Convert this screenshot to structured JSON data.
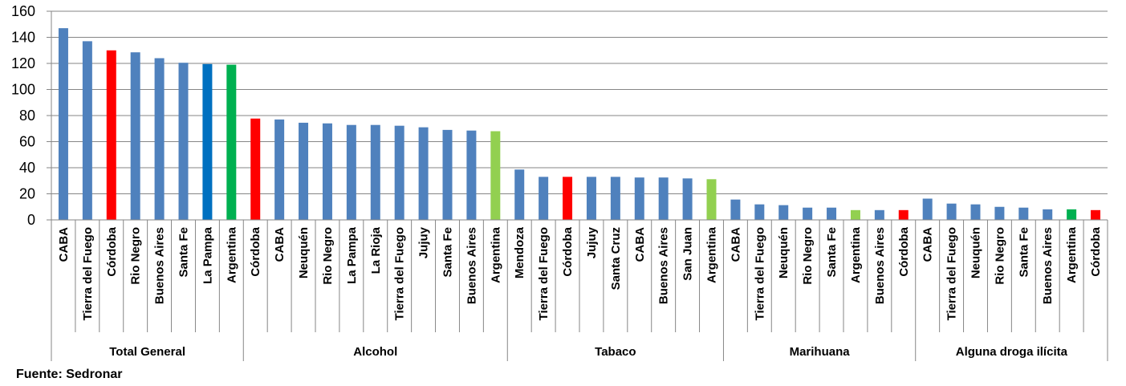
{
  "chart_data": {
    "type": "bar",
    "title": "",
    "xlabel": "",
    "ylabel": "",
    "ylim": [
      0,
      160
    ],
    "yticks": [
      0,
      20,
      40,
      60,
      80,
      100,
      120,
      140,
      160
    ],
    "grid": true,
    "legend": null,
    "groups": [
      {
        "name": "Total General",
        "categories": [
          "CABA",
          "Tierra del Fuego",
          "Córdoba",
          "Rio Negro",
          "Buenos Aires",
          "Santa Fe",
          "La Pampa",
          "Argentina"
        ],
        "values": [
          147,
          137,
          130,
          128.5,
          124,
          120.5,
          119.5,
          119
        ],
        "colors": [
          "#4F81BD",
          "#4F81BD",
          "#FF0000",
          "#4F81BD",
          "#4F81BD",
          "#4F81BD",
          "#0070C0",
          "#00B050"
        ]
      },
      {
        "name": "Alcohol",
        "categories": [
          "Córdoba",
          "CABA",
          "Neuquén",
          "Rio Negro",
          "La Pampa",
          "La Rioja",
          "Tierra del Fuego",
          "Jujuy",
          "Santa Fe",
          "Buenos Aires",
          "Argentina"
        ],
        "values": [
          77.7,
          77,
          74.5,
          74,
          72.8,
          72.8,
          72.2,
          71,
          69,
          68.5,
          68
        ],
        "colors": [
          "#FF0000",
          "#4F81BD",
          "#4F81BD",
          "#4F81BD",
          "#4F81BD",
          "#4F81BD",
          "#4F81BD",
          "#4F81BD",
          "#4F81BD",
          "#4F81BD",
          "#92D050"
        ]
      },
      {
        "name": "Tabaco",
        "categories": [
          "Mendoza",
          "Tierra del Fuego",
          "Córdoba",
          "Jujuy",
          "Santa Cruz",
          "CABA",
          "Buenos Aires",
          "San Juan",
          "Argentina"
        ],
        "values": [
          38.6,
          33,
          33,
          33,
          33,
          32.5,
          32.5,
          31.8,
          31.2
        ],
        "colors": [
          "#4F81BD",
          "#4F81BD",
          "#FF0000",
          "#4F81BD",
          "#4F81BD",
          "#4F81BD",
          "#4F81BD",
          "#4F81BD",
          "#92D050"
        ]
      },
      {
        "name": "Marihuana",
        "categories": [
          "CABA",
          "Tierra del Fuego",
          "Neuquén",
          "Rio Negro",
          "Santa Fe",
          "Argentina",
          "Buenos Aires",
          "Córdoba"
        ],
        "values": [
          15.6,
          11.9,
          11.3,
          9.4,
          9.4,
          7.5,
          7.5,
          7.5
        ],
        "colors": [
          "#4F81BD",
          "#4F81BD",
          "#4F81BD",
          "#4F81BD",
          "#4F81BD",
          "#92D050",
          "#4F81BD",
          "#FF0000"
        ]
      },
      {
        "name": "Alguna droga ilícita",
        "categories": [
          "CABA",
          "Tierra del Fuego",
          "Neuquén",
          "Rio Negro",
          "Santa Fe",
          "Buenos Aires",
          "Argentina",
          "Córdoba"
        ],
        "values": [
          16.3,
          12.5,
          11.9,
          10,
          9.4,
          8.1,
          8.1,
          7.5
        ],
        "colors": [
          "#4F81BD",
          "#4F81BD",
          "#4F81BD",
          "#4F81BD",
          "#4F81BD",
          "#4F81BD",
          "#00B050",
          "#FF0000"
        ]
      }
    ],
    "series_colors": {
      "default": "#4F81BD",
      "cordoba_highlight": "#FF0000",
      "la_pampa_highlight": "#0070C0",
      "argentina_total": "#00B050",
      "argentina_other": "#92D050"
    }
  },
  "source_note": "Fuente: Sedronar",
  "style": {
    "gridline_color": "#868686",
    "axis_color": "#868686"
  }
}
